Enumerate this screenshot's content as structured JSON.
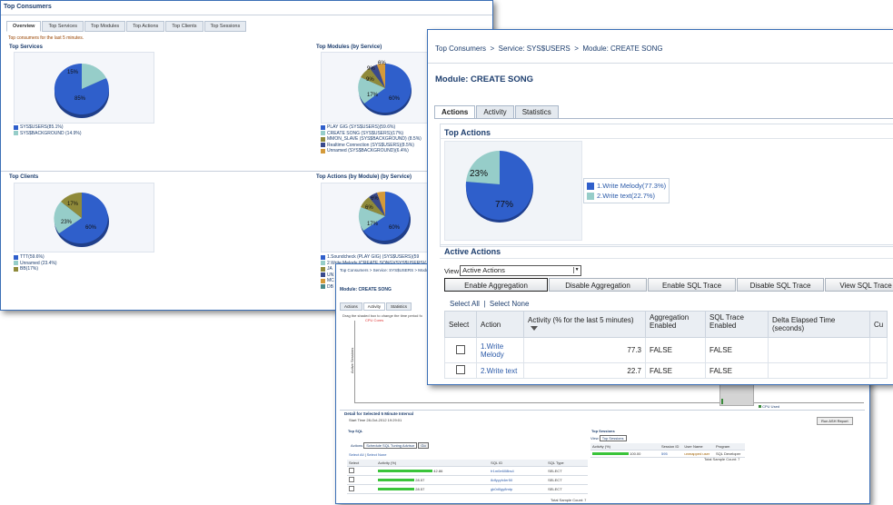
{
  "colors": {
    "blue": "#2f5fcb",
    "teal": "#96cdc9",
    "olive": "#8f8a3a",
    "darkblue": "#3a4a8c",
    "orange": "#d49a3a",
    "navy": "#1d3e6e"
  },
  "back": {
    "title": "Top Consumers",
    "tabs": [
      "Overview",
      "Top Services",
      "Top Modules",
      "Top Actions",
      "Top Clients",
      "Top Sessions"
    ],
    "hint": "Top consumers for the last 5 minutes.",
    "services": {
      "heading": "Top Services",
      "pie_labels": [
        "85%",
        "15%"
      ],
      "legend": [
        "SYS$USERS(85.1%)",
        "SYS$BACKGROUND (14.9%)"
      ]
    },
    "modules": {
      "heading": "Top Modules (by Service)",
      "pie_labels": [
        "60%",
        "17%",
        "9%",
        "9%",
        "6%"
      ],
      "legend": [
        "PLAY GIG (SYS$USERS)(59.6%)",
        "CREATE SONG (SYS$USERS)(17%)",
        "MMON_SLAVE (SYS$BACKGROUND) (8.5%)",
        "Realtime Connection (SYS$USERS)(8.5%)",
        "Unnamed (SYS$BACKGROUND)(6.4%)"
      ]
    },
    "clients": {
      "heading": "Top Clients",
      "pie_labels": [
        "60%",
        "23%",
        "17%"
      ],
      "legend": [
        "TTT(59.6%)",
        "Unnamed (23.4%)",
        "BB(17%)"
      ]
    },
    "actions": {
      "heading": "Top Actions (by Module) (by Service)",
      "pie_labels": [
        "60%",
        "17%",
        "6%",
        "6%"
      ],
      "legend": [
        "1.Soundcheck (PLAY GIG) (SYS$USERS)(59",
        "2.Write Melody (CREATE SONG)(SYS$USERS)(",
        "JA",
        "UN",
        "MC",
        "DB"
      ]
    }
  },
  "middle": {
    "crumb": "Top Consumers  >  Service: SYS$USERS  >  Modul",
    "module": "Module: CREATE SONG",
    "tabs": [
      "Actions",
      "Activity",
      "Statistics"
    ],
    "instruction": "Drag the shaded box to change the time period fo",
    "cpu_legend": "CPU Cores",
    "y_axis": "Active Sessions",
    "legend_right": "CPU Used",
    "detail_heading": "Detail for Selected 5 Minute Interval",
    "start_time": "Start Time  28-Oct-2012 19:29:01",
    "ash_button": "Run ASH Report",
    "top_sql": "Top SQL",
    "actions_label": "Actions",
    "actions_select": "Schedule SQL Tuning Advisor",
    "go": "Go",
    "select_all": "Select All",
    "select_none": "Select None",
    "sql_cols": [
      "Select",
      "Activity (%)",
      "SQL ID",
      "SQL Type"
    ],
    "sql_rows": [
      {
        "pct": "42.86",
        "id": "fr1m0e608bs4",
        "type": "SELECT"
      },
      {
        "pct": "28.57",
        "id": "8dfyyyh4er50",
        "type": "SELECT"
      },
      {
        "pct": "28.57",
        "id": "gk0d0gy8mtp",
        "type": "SELECT"
      }
    ],
    "sql_total": "Total Sample Count: 7",
    "top_sessions": "Top Sessions",
    "view_label": "View",
    "view_select": "Top Sessions",
    "sess_cols": [
      "Activity (%)",
      "Session ID",
      "User Name",
      "Program"
    ],
    "sess_row": {
      "pct": "100.00",
      "sid": "595",
      "user": "unmapped user",
      "prog": "SQL Developer"
    },
    "sess_total": "Total Sample Count: 7"
  },
  "front": {
    "crumbs": [
      "Top Consumers",
      "Service: SYS$USERS",
      "Module: CREATE SONG"
    ],
    "sep": ">",
    "module_title": "Module: CREATE SONG",
    "tabs": [
      "Actions",
      "Activity",
      "Statistics"
    ],
    "top_actions": "Top Actions",
    "pie": [
      {
        "label": "77%",
        "value": 77.3
      },
      {
        "label": "23%",
        "value": 22.7
      }
    ],
    "legend": [
      "1.Write Melody(77.3%)",
      "2.Write text(22.7%)"
    ],
    "active_actions": "Active Actions",
    "view_label": "View",
    "view_value": "Active Actions",
    "buttons": [
      "Enable Aggregation",
      "Disable Aggregation",
      "Enable SQL Trace",
      "Disable SQL Trace",
      "View SQL Trace"
    ],
    "select_all": "Select All",
    "select_none": "Select None",
    "columns": [
      "Select",
      "Action",
      "Activity (% for the last 5 minutes)",
      "Aggregation Enabled",
      "SQL Trace Enabled",
      "Delta Elapsed Time (seconds)",
      "Cu"
    ],
    "rows": [
      {
        "action": "1.Write Melody",
        "activity": "77.3",
        "aggregation": "FALSE",
        "trace": "FALSE"
      },
      {
        "action": "2.Write text",
        "activity": "22.7",
        "aggregation": "FALSE",
        "trace": "FALSE"
      }
    ]
  }
}
